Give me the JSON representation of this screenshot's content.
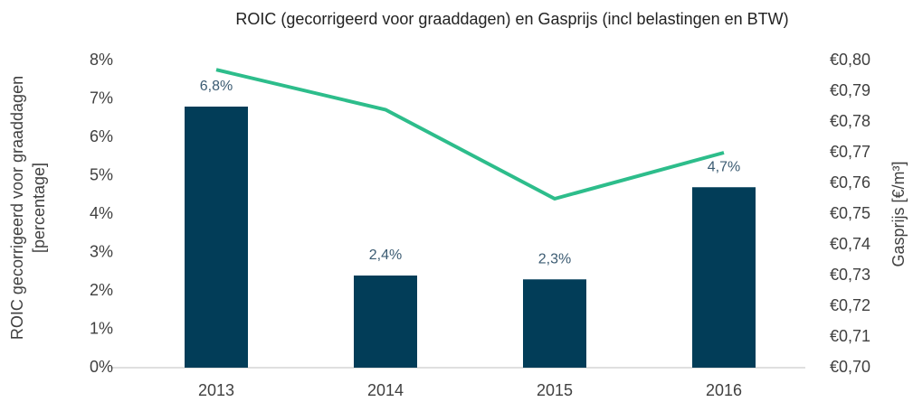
{
  "chart_data": {
    "type": "bar_line",
    "title": "ROIC (gecorrigeerd voor graaddagen)  en Gasprijs (incl belastingen en BTW)",
    "ylabel": [
      "ROIC gecorrigeerd voor graaddagen",
      "[percentage]"
    ],
    "y2label": "Gasprijs [€/m³]",
    "categories": [
      "2013",
      "2014",
      "2015",
      "2016"
    ],
    "series": [
      {
        "type": "bar",
        "color": "#023d58",
        "values": [
          6.8,
          2.4,
          2.3,
          4.7
        ],
        "value_labels": [
          "6,8%",
          "2,4%",
          "2,3%",
          "4,7%"
        ],
        "axis": "y"
      },
      {
        "type": "line",
        "color": "#2dbd8b",
        "values": [
          0.797,
          0.784,
          0.755,
          0.77
        ],
        "axis": "y2"
      }
    ],
    "ylim": [
      0,
      8
    ],
    "yticks": [
      {
        "value": 0,
        "label": "0%"
      },
      {
        "value": 1,
        "label": "1%"
      },
      {
        "value": 2,
        "label": "2%"
      },
      {
        "value": 3,
        "label": "3%"
      },
      {
        "value": 4,
        "label": "4%"
      },
      {
        "value": 5,
        "label": "5%"
      },
      {
        "value": 6,
        "label": "6%"
      },
      {
        "value": 7,
        "label": "7%"
      },
      {
        "value": 8,
        "label": "8%"
      }
    ],
    "y2lim": [
      0.7,
      0.8
    ],
    "y2ticks": [
      {
        "value": 0.7,
        "label": "€0,70"
      },
      {
        "value": 0.71,
        "label": "€0,71"
      },
      {
        "value": 0.72,
        "label": "€0,72"
      },
      {
        "value": 0.73,
        "label": "€0,73"
      },
      {
        "value": 0.74,
        "label": "€0,74"
      },
      {
        "value": 0.75,
        "label": "€0,75"
      },
      {
        "value": 0.76,
        "label": "€0,76"
      },
      {
        "value": 0.77,
        "label": "€0,77"
      },
      {
        "value": 0.78,
        "label": "€0,78"
      },
      {
        "value": 0.79,
        "label": "€0,79"
      },
      {
        "value": 0.8,
        "label": "€0,80"
      }
    ],
    "grid": false
  }
}
